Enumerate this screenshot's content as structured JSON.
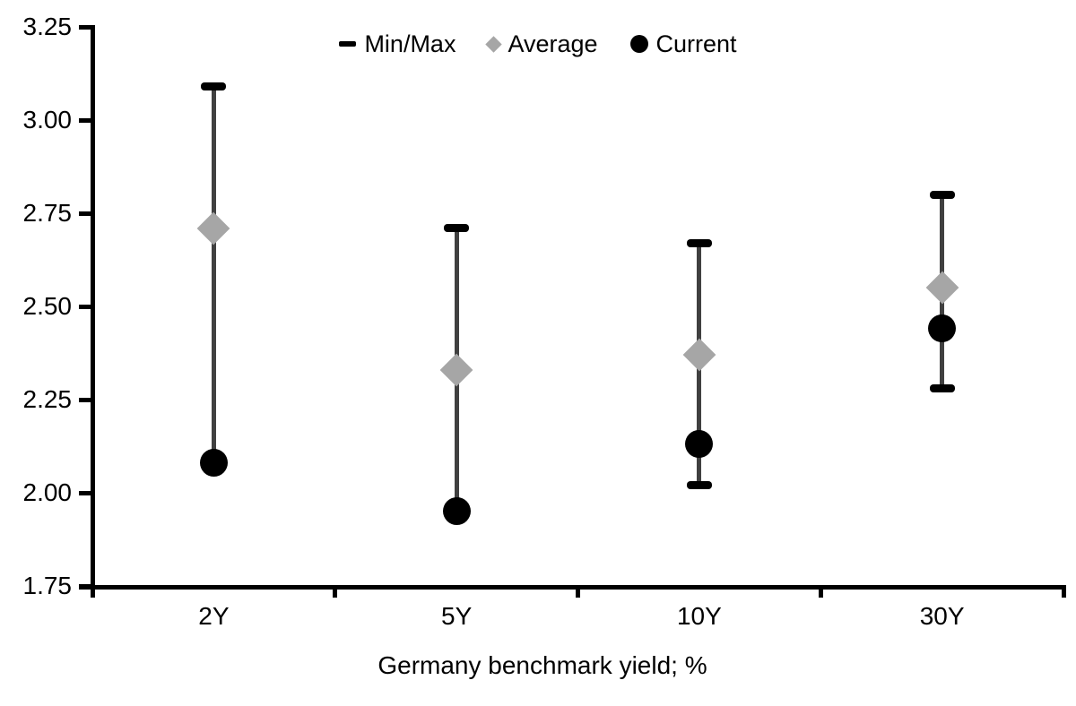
{
  "colors": {
    "background": "#ffffff",
    "axis": "#000000",
    "text": "#000000",
    "range_line": "#404040",
    "minmax_cap": "#000000",
    "average_fill": "#a6a6a6",
    "current_fill": "#000000"
  },
  "legend": {
    "items": [
      {
        "label": "Min/Max",
        "marker": "dash"
      },
      {
        "label": "Average",
        "marker": "diamond"
      },
      {
        "label": "Current",
        "marker": "circle"
      }
    ]
  },
  "chart_data": {
    "type": "scatter",
    "subtype": "min-max-range-chart",
    "categories": [
      "2Y",
      "5Y",
      "10Y",
      "30Y"
    ],
    "series": [
      {
        "name": "Min/Max",
        "role": "range",
        "min": [
          2.08,
          1.95,
          2.02,
          2.28
        ],
        "max": [
          3.09,
          2.71,
          2.67,
          2.8
        ]
      },
      {
        "name": "Average",
        "role": "point",
        "marker": "diamond",
        "values": [
          2.71,
          2.33,
          2.37,
          2.55
        ]
      },
      {
        "name": "Current",
        "role": "point",
        "marker": "circle",
        "values": [
          2.08,
          1.95,
          2.13,
          2.44
        ]
      }
    ],
    "title": "",
    "xlabel": "Germany benchmark yield; %",
    "ylabel": "",
    "ylim": [
      1.75,
      3.25
    ],
    "ytick_labels": [
      "3.25",
      "3.00",
      "2.75",
      "2.50",
      "2.25",
      "2.00",
      "1.75"
    ],
    "grid": false,
    "legend_position": "top-center"
  }
}
